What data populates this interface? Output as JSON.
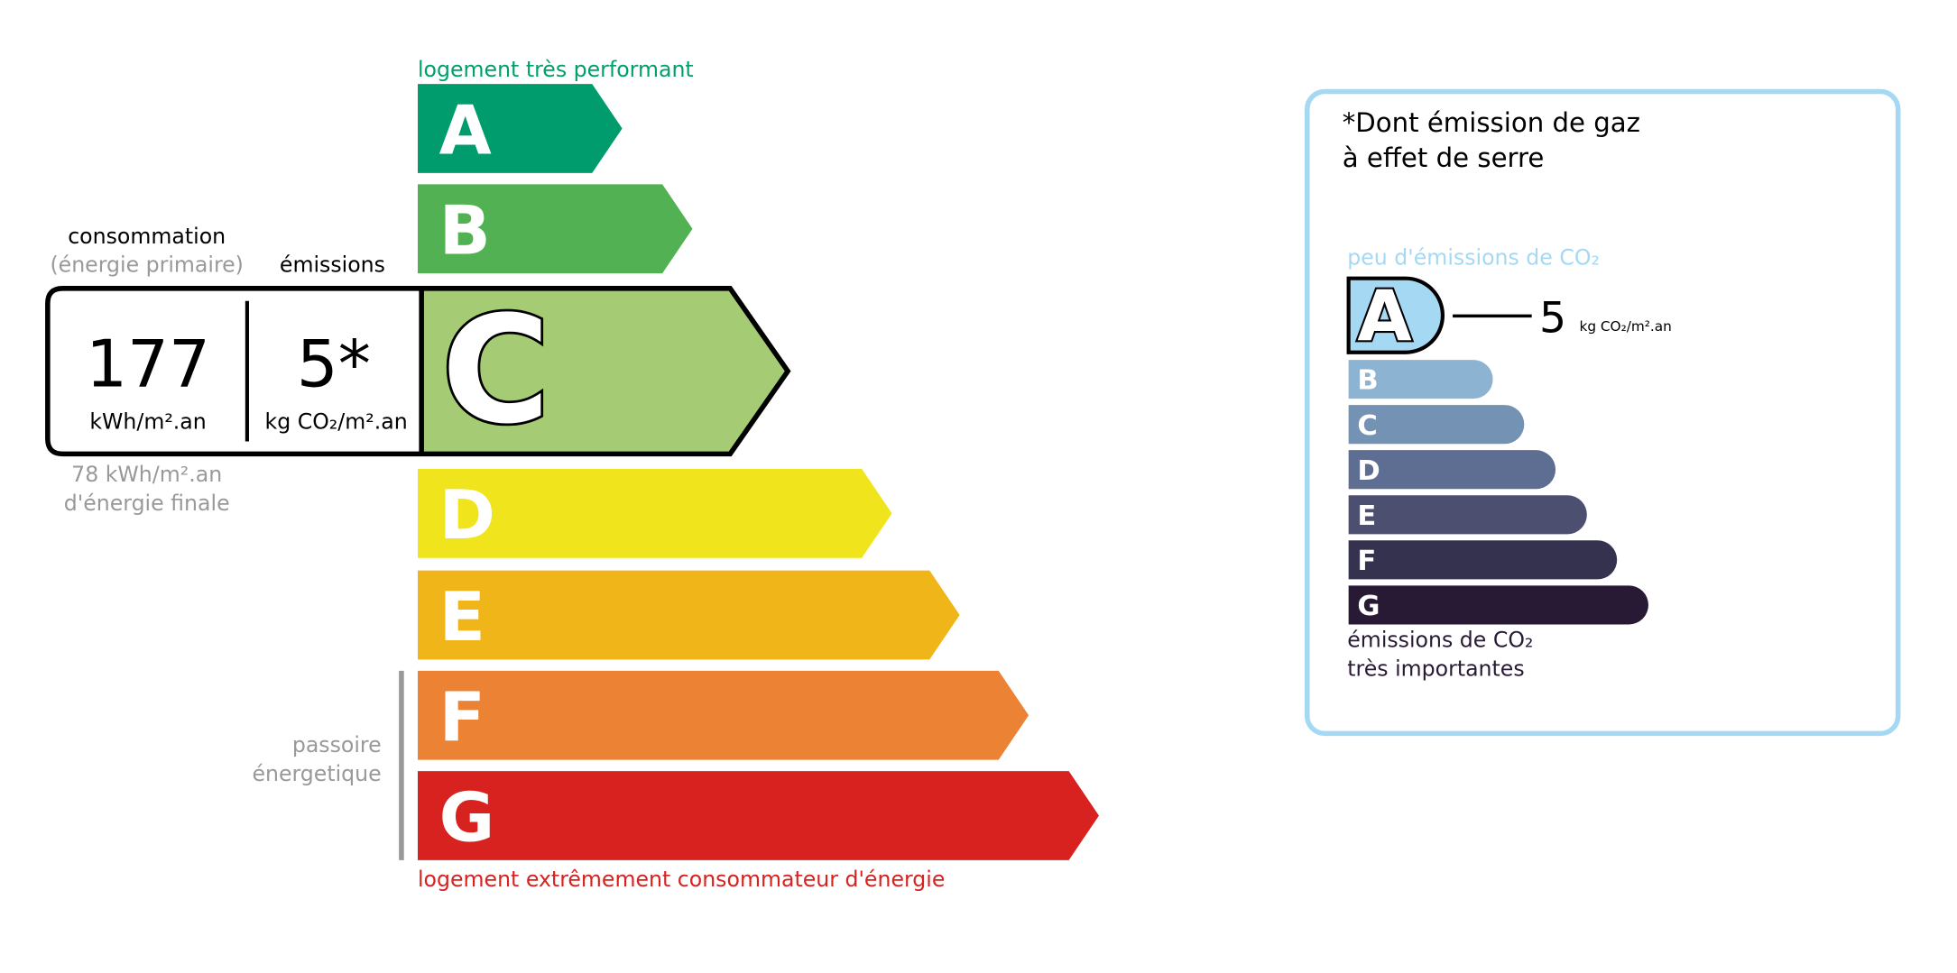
{
  "energy": {
    "top_label": "logement très performant",
    "bottom_label": "logement extrêmement consommateur d'énergie",
    "passoire_line1": "passoire",
    "passoire_line2": "énergetique",
    "classes": [
      {
        "letter": "A",
        "color": "#009c6d"
      },
      {
        "letter": "B",
        "color": "#52b153"
      },
      {
        "letter": "C",
        "color": "#a5cc74"
      },
      {
        "letter": "D",
        "color": "#f0e51c"
      },
      {
        "letter": "E",
        "color": "#f0b519"
      },
      {
        "letter": "F",
        "color": "#eb8234"
      },
      {
        "letter": "G",
        "color": "#d7221f"
      }
    ],
    "current_class": "C",
    "consumption_header": "consommation",
    "consumption_subheader": "(énergie primaire)",
    "emissions_header": "émissions",
    "consumption_value": "177",
    "consumption_unit": "kWh/m².an",
    "emissions_value": "5*",
    "emissions_unit": "kg CO₂/m².an",
    "final_energy_line1": "78 kWh/m².an",
    "final_energy_line2": "d'énergie finale"
  },
  "ghg": {
    "title_line1": "*Dont émission de gaz",
    "title_line2": "à effet de serre",
    "top_label": "peu d'émissions de CO₂",
    "bottom_label_line1": "émissions de CO₂",
    "bottom_label_line2": "très importantes",
    "current_class": "A",
    "value": "5",
    "unit": "kg CO₂/m².an",
    "border_color": "#a5d8f3",
    "classes": [
      {
        "letter": "A",
        "color": "#a5d8f3"
      },
      {
        "letter": "B",
        "color": "#8db3d3"
      },
      {
        "letter": "C",
        "color": "#7492b3"
      },
      {
        "letter": "D",
        "color": "#5e6e92"
      },
      {
        "letter": "E",
        "color": "#4d4f70"
      },
      {
        "letter": "F",
        "color": "#35324f"
      },
      {
        "letter": "G",
        "color": "#281a35"
      }
    ]
  }
}
